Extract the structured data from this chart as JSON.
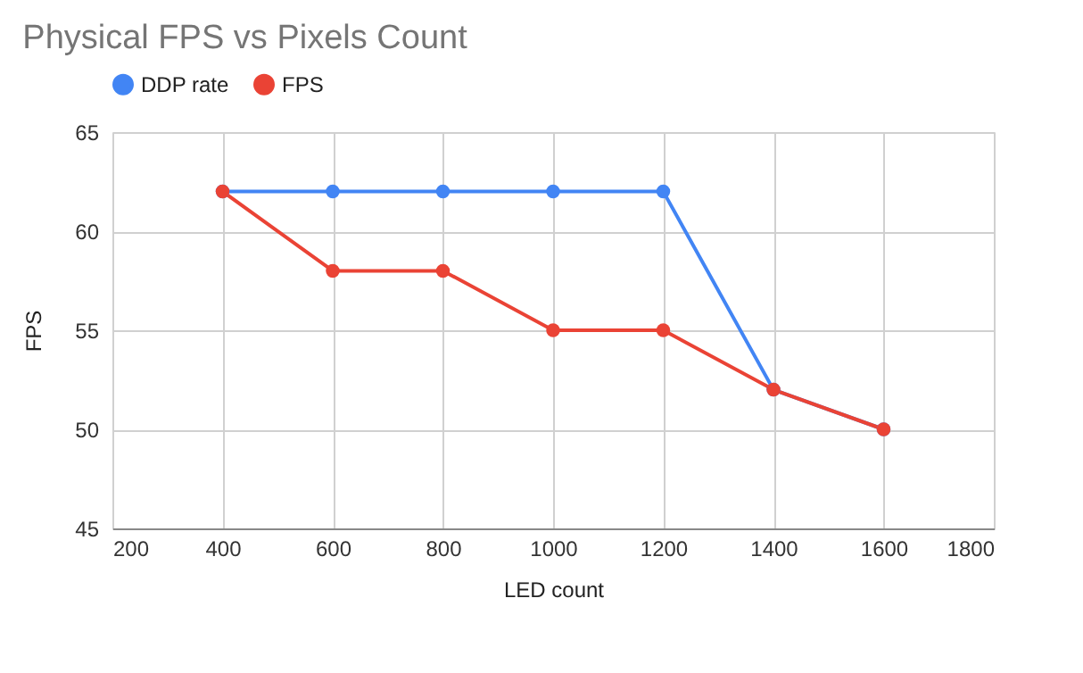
{
  "chart_data": {
    "type": "line",
    "title": "Physical FPS vs Pixels Count",
    "xlabel": "LED count",
    "ylabel": "FPS",
    "x": [
      400,
      600,
      800,
      1000,
      1200,
      1400,
      1600
    ],
    "series": [
      {
        "name": "DDP rate",
        "color": "#4285f4",
        "values": [
          62,
          62,
          62,
          62,
          62,
          52,
          50
        ]
      },
      {
        "name": "FPS",
        "color": "#ea4335",
        "values": [
          62,
          58,
          58,
          55,
          55,
          52,
          50
        ]
      }
    ],
    "xlim": [
      200,
      1800
    ],
    "xticks": [
      200,
      400,
      600,
      800,
      1000,
      1200,
      1400,
      1600,
      1800
    ],
    "ylim": [
      45,
      65
    ],
    "yticks": [
      45,
      50,
      55,
      60,
      65
    ],
    "grid": true,
    "legend": "top",
    "marker": "circle",
    "line_style": "solid"
  }
}
